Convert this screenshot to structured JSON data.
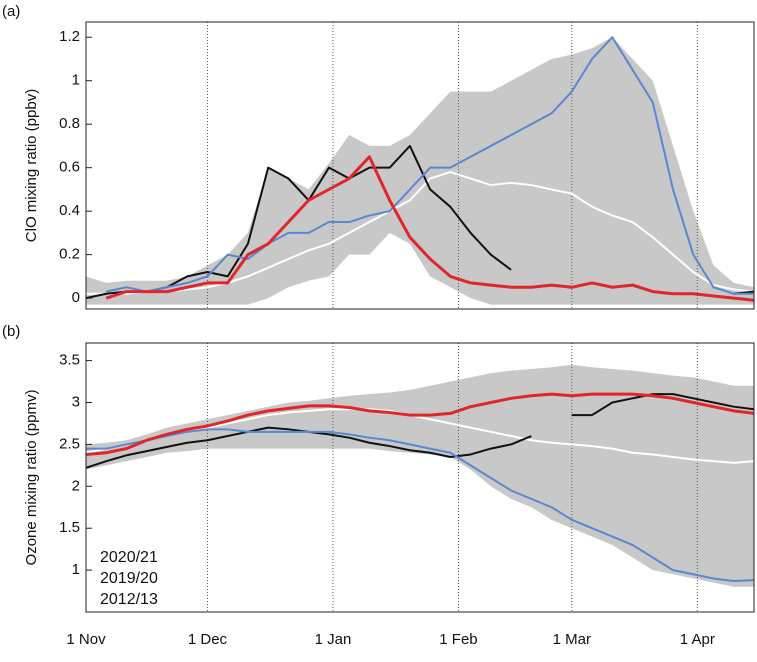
{
  "chart_data": [
    {
      "type": "line",
      "panel_label": "(a)",
      "y_label": "ClO mixing ratio (ppbv)",
      "x": [
        0,
        5,
        10,
        15,
        20,
        25,
        30,
        35,
        40,
        45,
        50,
        55,
        60,
        65,
        70,
        75,
        80,
        85,
        90,
        95,
        100,
        105,
        110,
        115,
        120,
        125,
        130,
        135,
        140,
        145,
        150,
        155,
        160,
        165
      ],
      "xlim": [
        0,
        165
      ],
      "xticks": [
        30,
        61,
        92,
        120,
        151
      ],
      "xtick_labels": false,
      "ylim": [
        -0.05,
        1.27
      ],
      "yticks": [
        0,
        0.2,
        0.4,
        0.6,
        0.8,
        1,
        1.2
      ],
      "range": {
        "color": "#c8c8c8",
        "upper": [
          0.1,
          0.07,
          0.08,
          0.08,
          0.08,
          0.1,
          0.15,
          0.2,
          0.3,
          0.6,
          0.55,
          0.5,
          0.62,
          0.75,
          0.7,
          0.7,
          0.75,
          0.85,
          0.95,
          0.95,
          0.95,
          1.0,
          1.05,
          1.1,
          1.12,
          1.15,
          1.2,
          1.1,
          1.0,
          0.7,
          0.4,
          0.15,
          0.07,
          0.05
        ],
        "lower": [
          -0.03,
          -0.03,
          -0.03,
          -0.03,
          -0.03,
          -0.03,
          -0.03,
          -0.03,
          -0.03,
          0.0,
          0.05,
          0.08,
          0.1,
          0.2,
          0.2,
          0.3,
          0.25,
          0.1,
          0.05,
          0.0,
          -0.03,
          -0.03,
          -0.03,
          -0.03,
          -0.03,
          -0.03,
          -0.03,
          -0.03,
          -0.03,
          -0.03,
          -0.03,
          -0.03,
          -0.03,
          -0.03
        ]
      },
      "mean": {
        "color": "#ffffff",
        "values": [
          0.02,
          0.02,
          0.02,
          0.03,
          0.03,
          0.04,
          0.05,
          0.07,
          0.1,
          0.14,
          0.18,
          0.22,
          0.25,
          0.3,
          0.35,
          0.4,
          0.45,
          0.55,
          0.58,
          0.55,
          0.52,
          0.53,
          0.52,
          0.5,
          0.48,
          0.42,
          0.38,
          0.35,
          0.28,
          0.2,
          0.12,
          0.06,
          0.04,
          0.03
        ]
      },
      "series": [
        {
          "color": "#111111",
          "values": [
            0.0,
            0.02,
            0.03,
            0.03,
            0.05,
            0.1,
            0.12,
            0.1,
            0.25,
            0.6,
            0.55,
            0.45,
            0.6,
            0.55,
            0.6,
            0.6,
            0.7,
            0.5,
            0.42,
            0.3,
            0.2,
            0.13,
            null,
            null,
            null,
            null,
            null,
            null,
            null,
            null,
            null,
            null,
            0.02,
            0.03
          ]
        },
        {
          "color": "#5b87d1",
          "values": [
            null,
            0.03,
            0.05,
            0.03,
            0.05,
            0.07,
            0.1,
            0.2,
            0.18,
            0.25,
            0.3,
            0.3,
            0.35,
            0.35,
            0.38,
            0.4,
            0.5,
            0.6,
            0.6,
            0.65,
            0.7,
            0.75,
            0.8,
            0.85,
            0.95,
            1.1,
            1.2,
            1.05,
            0.9,
            0.5,
            0.2,
            0.05,
            0.02,
            0.02
          ]
        },
        {
          "color": "#e0262b",
          "values": [
            null,
            0.0,
            0.03,
            0.03,
            0.03,
            0.05,
            0.07,
            0.07,
            0.2,
            0.25,
            0.35,
            0.45,
            0.5,
            0.55,
            0.65,
            0.45,
            0.28,
            0.18,
            0.1,
            0.07,
            0.06,
            0.05,
            0.05,
            0.06,
            0.05,
            0.07,
            0.05,
            0.06,
            0.03,
            0.02,
            0.02,
            0.01,
            0.0,
            -0.01
          ]
        }
      ]
    },
    {
      "type": "line",
      "panel_label": "(b)",
      "y_label": "Ozone mixing ratio (ppmv)",
      "x": [
        0,
        5,
        10,
        15,
        20,
        25,
        30,
        35,
        40,
        45,
        50,
        55,
        60,
        65,
        70,
        75,
        80,
        85,
        90,
        95,
        100,
        105,
        110,
        115,
        120,
        125,
        130,
        135,
        140,
        145,
        150,
        155,
        160,
        165
      ],
      "xlim": [
        0,
        165
      ],
      "xticks": [
        {
          "value": 0,
          "label": "1 Nov"
        },
        {
          "value": 30,
          "label": "1 Dec"
        },
        {
          "value": 61,
          "label": "1 Jan"
        },
        {
          "value": 92,
          "label": "1 Feb"
        },
        {
          "value": 120,
          "label": "1 Mar"
        },
        {
          "value": 151,
          "label": "1 Apr"
        }
      ],
      "xtick_labels": true,
      "ylim": [
        0.5,
        3.71
      ],
      "yticks": [
        1,
        1.5,
        2,
        2.5,
        3,
        3.5
      ],
      "legend": "lower left",
      "range": {
        "color": "#c8c8c8",
        "upper": [
          2.5,
          2.52,
          2.55,
          2.62,
          2.7,
          2.75,
          2.8,
          2.85,
          2.9,
          2.95,
          3.0,
          3.02,
          3.05,
          3.08,
          3.1,
          3.12,
          3.15,
          3.2,
          3.25,
          3.3,
          3.35,
          3.38,
          3.4,
          3.42,
          3.45,
          3.42,
          3.4,
          3.38,
          3.35,
          3.32,
          3.3,
          3.25,
          3.2,
          3.2
        ],
        "lower": [
          2.2,
          2.25,
          2.3,
          2.35,
          2.4,
          2.42,
          2.45,
          2.45,
          2.45,
          2.45,
          2.45,
          2.45,
          2.45,
          2.45,
          2.45,
          2.42,
          2.4,
          2.38,
          2.35,
          2.2,
          2.0,
          1.85,
          1.75,
          1.6,
          1.5,
          1.4,
          1.3,
          1.15,
          1.0,
          0.95,
          0.9,
          0.85,
          0.8,
          0.8
        ]
      },
      "mean": {
        "color": "#ffffff",
        "values": [
          2.4,
          2.45,
          2.5,
          2.55,
          2.6,
          2.65,
          2.7,
          2.75,
          2.8,
          2.85,
          2.88,
          2.9,
          2.92,
          2.92,
          2.92,
          2.9,
          2.85,
          2.8,
          2.75,
          2.7,
          2.65,
          2.6,
          2.55,
          2.52,
          2.5,
          2.48,
          2.45,
          2.4,
          2.38,
          2.35,
          2.32,
          2.3,
          2.28,
          2.3
        ]
      },
      "series": [
        {
          "name": "2012/13",
          "color": "#111111",
          "values": [
            2.22,
            2.3,
            2.37,
            2.42,
            2.47,
            2.52,
            2.55,
            2.6,
            2.65,
            2.7,
            2.68,
            2.65,
            2.62,
            2.58,
            2.52,
            2.48,
            2.43,
            2.4,
            2.35,
            2.38,
            2.45,
            2.5,
            2.6,
            null,
            2.85,
            2.85,
            3.0,
            3.05,
            3.1,
            3.1,
            3.05,
            3.0,
            2.95,
            2.92
          ]
        },
        {
          "name": "2019/20",
          "color": "#5b87d1",
          "values": [
            2.45,
            2.45,
            2.5,
            2.55,
            2.6,
            2.65,
            2.68,
            2.68,
            2.65,
            2.65,
            2.65,
            2.65,
            2.65,
            2.62,
            2.58,
            2.55,
            2.5,
            2.45,
            2.4,
            2.25,
            2.1,
            1.95,
            1.85,
            1.75,
            1.6,
            1.5,
            1.4,
            1.3,
            1.15,
            1.0,
            0.95,
            0.9,
            0.87,
            0.88
          ]
        },
        {
          "name": "2020/21",
          "color": "#e0262b",
          "values": [
            2.38,
            2.4,
            2.45,
            2.55,
            2.62,
            2.68,
            2.72,
            2.78,
            2.85,
            2.9,
            2.93,
            2.96,
            2.96,
            2.94,
            2.9,
            2.88,
            2.85,
            2.85,
            2.87,
            2.95,
            3.0,
            3.05,
            3.08,
            3.1,
            3.08,
            3.1,
            3.1,
            3.1,
            3.08,
            3.05,
            3.0,
            2.95,
            2.9,
            2.87
          ]
        }
      ]
    }
  ]
}
